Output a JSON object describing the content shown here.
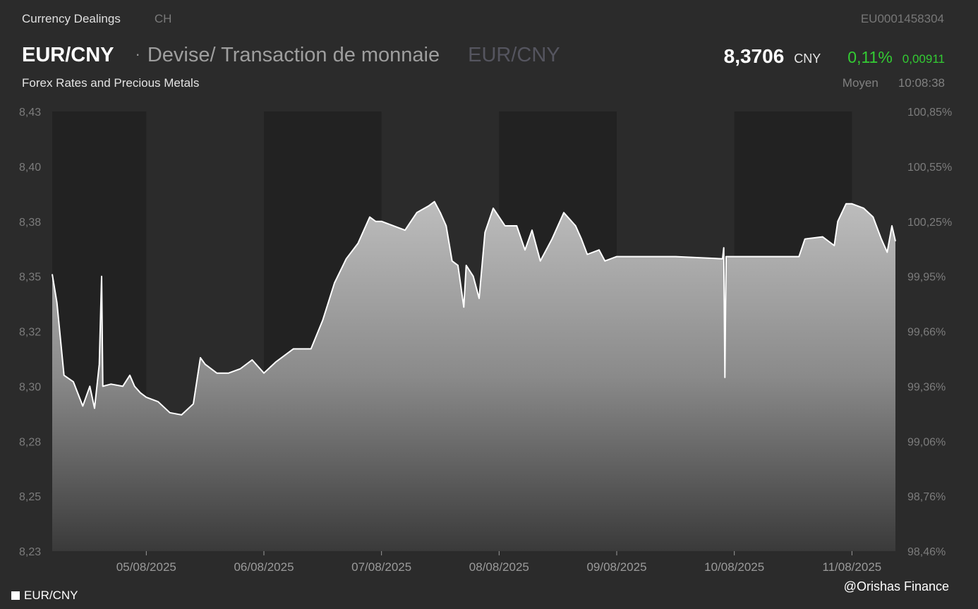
{
  "header": {
    "category": "Currency Dealings",
    "country": "CH",
    "isin": "EU0001458304",
    "symbol": "EUR/CNY",
    "description": "Devise/ Transaction de monnaie",
    "symbol_secondary": "EUR/CNY",
    "subtitle": "Forex Rates and Precious Metals",
    "price": "8,3706",
    "currency": "CNY",
    "change_percent": "0,11%",
    "change_abs": "0,00911",
    "price_type": "Moyen",
    "time": "10:08:38"
  },
  "legend": {
    "label": "EUR/CNY"
  },
  "watermark": "@Orishas Finance",
  "colors": {
    "background": "#2b2b2b",
    "band_dark": "#222222",
    "line": "#ffffff",
    "positive": "#33cc33"
  },
  "chart_data": {
    "type": "area",
    "ylim": [
      8.23,
      8.43
    ],
    "y_ticks": [
      "8,43",
      "8,40",
      "8,38",
      "8,35",
      "8,32",
      "8,30",
      "8,28",
      "8,25",
      "8,23"
    ],
    "y_ticks_right": [
      "100,85%",
      "100,55%",
      "100,25%",
      "99,95%",
      "99,66%",
      "99,36%",
      "99,06%",
      "98,76%",
      "98,46%"
    ],
    "x_ticks": [
      "05/08/2025",
      "06/08/2025",
      "07/08/2025",
      "08/08/2025",
      "09/08/2025",
      "10/08/2025",
      "11/08/2025"
    ],
    "x_range_days": [
      4.2,
      11.4
    ],
    "points": [
      [
        4.2,
        8.356
      ],
      [
        4.24,
        8.343
      ],
      [
        4.3,
        8.31
      ],
      [
        4.38,
        8.307
      ],
      [
        4.46,
        8.296
      ],
      [
        4.52,
        8.305
      ],
      [
        4.56,
        8.295
      ],
      [
        4.6,
        8.315
      ],
      [
        4.62,
        8.355
      ],
      [
        4.63,
        8.305
      ],
      [
        4.7,
        8.306
      ],
      [
        4.8,
        8.305
      ],
      [
        4.86,
        8.31
      ],
      [
        4.9,
        8.305
      ],
      [
        4.95,
        8.302
      ],
      [
        5.0,
        8.3
      ],
      [
        5.1,
        8.298
      ],
      [
        5.2,
        8.293
      ],
      [
        5.3,
        8.292
      ],
      [
        5.4,
        8.297
      ],
      [
        5.46,
        8.318
      ],
      [
        5.5,
        8.315
      ],
      [
        5.6,
        8.311
      ],
      [
        5.7,
        8.311
      ],
      [
        5.8,
        8.313
      ],
      [
        5.9,
        8.317
      ],
      [
        6.0,
        8.311
      ],
      [
        6.1,
        8.316
      ],
      [
        6.25,
        8.322
      ],
      [
        6.4,
        8.322
      ],
      [
        6.5,
        8.335
      ],
      [
        6.6,
        8.352
      ],
      [
        6.7,
        8.363
      ],
      [
        6.8,
        8.37
      ],
      [
        6.9,
        8.382
      ],
      [
        6.95,
        8.38
      ],
      [
        7.0,
        8.38
      ],
      [
        7.2,
        8.376
      ],
      [
        7.3,
        8.384
      ],
      [
        7.4,
        8.387
      ],
      [
        7.45,
        8.389
      ],
      [
        7.5,
        8.384
      ],
      [
        7.55,
        8.378
      ],
      [
        7.6,
        8.362
      ],
      [
        7.65,
        8.36
      ],
      [
        7.7,
        8.341
      ],
      [
        7.72,
        8.36
      ],
      [
        7.78,
        8.355
      ],
      [
        7.83,
        8.345
      ],
      [
        7.88,
        8.375
      ],
      [
        7.95,
        8.386
      ],
      [
        8.05,
        8.378
      ],
      [
        8.15,
        8.378
      ],
      [
        8.22,
        8.367
      ],
      [
        8.28,
        8.376
      ],
      [
        8.35,
        8.362
      ],
      [
        8.45,
        8.372
      ],
      [
        8.55,
        8.384
      ],
      [
        8.65,
        8.378
      ],
      [
        8.7,
        8.372
      ],
      [
        8.75,
        8.365
      ],
      [
        8.85,
        8.367
      ],
      [
        8.9,
        8.362
      ],
      [
        9.0,
        8.364
      ],
      [
        9.5,
        8.364
      ],
      [
        9.9,
        8.363
      ],
      [
        9.91,
        8.368
      ],
      [
        9.92,
        8.309
      ],
      [
        9.93,
        8.364
      ],
      [
        10.2,
        8.364
      ],
      [
        10.55,
        8.364
      ],
      [
        10.6,
        8.372
      ],
      [
        10.75,
        8.373
      ],
      [
        10.85,
        8.369
      ],
      [
        10.88,
        8.38
      ],
      [
        10.95,
        8.388
      ],
      [
        11.0,
        8.388
      ],
      [
        11.1,
        8.386
      ],
      [
        11.18,
        8.382
      ],
      [
        11.25,
        8.372
      ],
      [
        11.3,
        8.366
      ],
      [
        11.34,
        8.378
      ],
      [
        11.37,
        8.371
      ]
    ]
  }
}
